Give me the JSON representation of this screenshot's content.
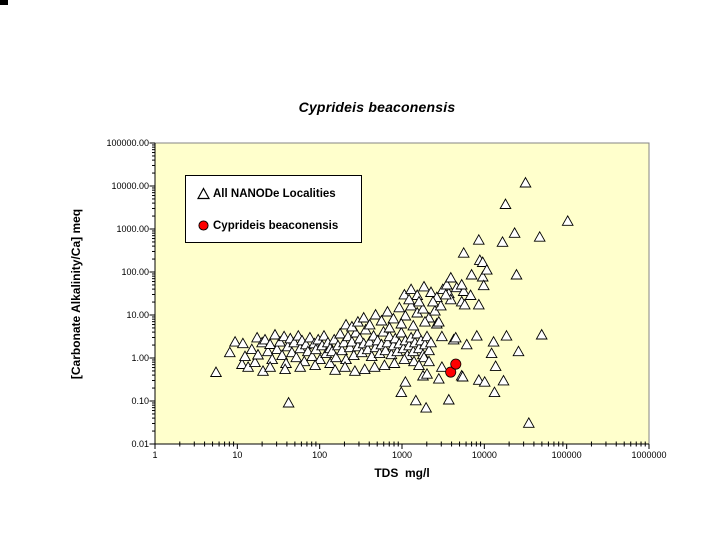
{
  "window": {
    "background": "#FFFFFF",
    "has_corner_mark": true
  },
  "chart_data": {
    "type": "scatter",
    "title": "Cyprideis beaconensis",
    "xlabel": "TDS  mg/l",
    "ylabel": "[Carbonate Alkalinity/Ca] meq",
    "x_scale": "log",
    "y_scale": "log",
    "xlim": [
      1,
      1000000
    ],
    "ylim": [
      0.01,
      100000
    ],
    "x_tick_labels": [
      "1",
      "10",
      "100",
      "1000",
      "10000",
      "100000",
      "1000000"
    ],
    "y_tick_labels": [
      "100000.00",
      "10000.00",
      "1000.00",
      "100.00",
      "10.00",
      "1.00",
      "0.10",
      "0.01"
    ],
    "grid": false,
    "legend_position": "upper-left-inside",
    "plot_background": "#FFFFCC",
    "frame_color": "#848484",
    "axis_color": "#000000",
    "series": [
      {
        "name": "All NANODe Localities",
        "marker": "open-triangle",
        "marker_fill": "#FFFFFF",
        "marker_stroke": "#000000",
        "points": [
          [
            5.5,
            0.47
          ],
          [
            8.1,
            1.36
          ],
          [
            9.4,
            2.4
          ],
          [
            11.4,
            0.72
          ],
          [
            11.7,
            2.2
          ],
          [
            12.4,
            1.1
          ],
          [
            13.5,
            0.62
          ],
          [
            16.4,
            0.8
          ],
          [
            17.4,
            3
          ],
          [
            20,
            2.3
          ],
          [
            20.5,
            0.5
          ],
          [
            15,
            1.6
          ],
          [
            17.8,
            1.2
          ],
          [
            21.7,
            2.7
          ],
          [
            23.5,
            1.43
          ],
          [
            25,
            2.1
          ],
          [
            26.5,
            0.94
          ],
          [
            28.7,
            3.5
          ],
          [
            30.3,
            1.6
          ],
          [
            33,
            2.4
          ],
          [
            35,
            1.16
          ],
          [
            37,
            3.2
          ],
          [
            39,
            0.76
          ],
          [
            41,
            1.86
          ],
          [
            44,
            2.85
          ],
          [
            46,
            1.36
          ],
          [
            49,
            2.3
          ],
          [
            52,
            1.04
          ],
          [
            55,
            3.3
          ],
          [
            58,
            1.68
          ],
          [
            61,
            2.56
          ],
          [
            65,
            0.84
          ],
          [
            68,
            2.07
          ],
          [
            72,
            1.43
          ],
          [
            76,
            3
          ],
          [
            81,
            1.1
          ],
          [
            86,
            2.18
          ],
          [
            90,
            1.59
          ],
          [
            96,
            2.7
          ],
          [
            101,
            0.94
          ],
          [
            107,
            1.96
          ],
          [
            113,
            3.3
          ],
          [
            120,
            1.29
          ],
          [
            126,
            2.3
          ],
          [
            134,
            1.68
          ],
          [
            25,
            0.62
          ],
          [
            38,
            0.55
          ],
          [
            58,
            0.62
          ],
          [
            88,
            0.68
          ],
          [
            134,
            0.76
          ],
          [
            42,
            0.092
          ],
          [
            141,
            1.43
          ],
          [
            150,
            2.7
          ],
          [
            158,
            1.04
          ],
          [
            167,
            1.96
          ],
          [
            177,
            3.7
          ],
          [
            187,
            1.51
          ],
          [
            198,
            2.3
          ],
          [
            209,
            0.94
          ],
          [
            221,
            3.2
          ],
          [
            233,
            1.77
          ],
          [
            246,
            2.4
          ],
          [
            260,
            1.16
          ],
          [
            275,
            3.9
          ],
          [
            291,
            1.86
          ],
          [
            307,
            2.85
          ],
          [
            325,
            1.36
          ],
          [
            343,
            2.18
          ],
          [
            362,
            4.6
          ],
          [
            383,
            1.59
          ],
          [
            405,
            2.4
          ],
          [
            428,
            1.1
          ],
          [
            452,
            3.3
          ],
          [
            478,
            1.77
          ],
          [
            505,
            2.56
          ],
          [
            534,
            1.29
          ],
          [
            564,
            2.07
          ],
          [
            596,
            4.1
          ],
          [
            630,
            1.51
          ],
          [
            666,
            2.3
          ],
          [
            704,
            3.2
          ],
          [
            744,
            1.22
          ],
          [
            786,
            1.96
          ],
          [
            830,
            2.85
          ],
          [
            878,
            1.43
          ],
          [
            928,
            2.18
          ],
          [
            980,
            3.9
          ],
          [
            1040,
            1.68
          ],
          [
            1100,
            2.56
          ],
          [
            1160,
            1.16
          ],
          [
            1220,
            1.96
          ],
          [
            1290,
            3
          ],
          [
            1370,
            1.43
          ],
          [
            1440,
            2.3
          ],
          [
            1530,
            3.7
          ],
          [
            1610,
            1.68
          ],
          [
            1700,
            2.56
          ],
          [
            1800,
            1.22
          ],
          [
            1900,
            2.07
          ],
          [
            2010,
            3.2
          ],
          [
            2130,
            1.51
          ],
          [
            2250,
            2.3
          ],
          [
            1070,
            0.94
          ],
          [
            1400,
            0.84
          ],
          [
            1850,
            1.04
          ],
          [
            808,
            0.76
          ],
          [
            613,
            0.68
          ],
          [
            465,
            0.62
          ],
          [
            352,
            0.55
          ],
          [
            268,
            0.5
          ],
          [
            203,
            0.62
          ],
          [
            154,
            0.53
          ],
          [
            1610,
            0.68
          ],
          [
            2130,
            0.84
          ],
          [
            209,
            6
          ],
          [
            246,
            5.4
          ],
          [
            291,
            7
          ],
          [
            343,
            8.7
          ],
          [
            405,
            6
          ],
          [
            478,
            10.2
          ],
          [
            564,
            7.4
          ],
          [
            666,
            12
          ],
          [
            786,
            8.3
          ],
          [
            928,
            15
          ],
          [
            1100,
            9.7
          ],
          [
            1290,
            16.6
          ],
          [
            1530,
            11.4
          ],
          [
            1800,
            14
          ],
          [
            2130,
            8.7
          ],
          [
            2510,
            12.6
          ],
          [
            2960,
            16.6
          ],
          [
            704,
            5.1
          ],
          [
            980,
            6.3
          ],
          [
            1370,
            5.7
          ],
          [
            1900,
            7
          ],
          [
            2650,
            6.3
          ],
          [
            1070,
            30
          ],
          [
            1290,
            39.8
          ],
          [
            1530,
            29
          ],
          [
            1850,
            46
          ],
          [
            2250,
            34
          ],
          [
            2650,
            26
          ],
          [
            3130,
            39.8
          ],
          [
            3700,
            32
          ],
          [
            4620,
            44
          ],
          [
            5610,
            36
          ],
          [
            6820,
            29
          ],
          [
            3500,
            51
          ],
          [
            1220,
            23
          ],
          [
            1610,
            20.6
          ],
          [
            2380,
            20.6
          ],
          [
            3910,
            23
          ],
          [
            2800,
            7
          ],
          [
            3050,
            3.2
          ],
          [
            3400,
            30
          ],
          [
            3910,
            74
          ],
          [
            4250,
            2.7
          ],
          [
            4490,
            3
          ],
          [
            5310,
            20.6
          ],
          [
            5310,
            51
          ],
          [
            5610,
            280
          ],
          [
            5770,
            17.5
          ],
          [
            6100,
            2.07
          ],
          [
            7010,
            87
          ],
          [
            8100,
            3.3
          ],
          [
            8560,
            560
          ],
          [
            8560,
            17.5
          ],
          [
            8800,
            190
          ],
          [
            9560,
            170
          ],
          [
            9560,
            78
          ],
          [
            9830,
            49
          ],
          [
            10700,
            113
          ],
          [
            12250,
            1.29
          ],
          [
            12950,
            2.4
          ],
          [
            13700,
            0.65
          ],
          [
            13300,
            0.16
          ],
          [
            16600,
            500
          ],
          [
            17100,
            0.3
          ],
          [
            18100,
            3800
          ],
          [
            18600,
            3.3
          ],
          [
            23300,
            810
          ],
          [
            24600,
            87
          ],
          [
            26000,
            1.43
          ],
          [
            31600,
            12000
          ],
          [
            34700,
            0.031
          ],
          [
            47000,
            660
          ],
          [
            49700,
            3.5
          ],
          [
            103000,
            1540
          ],
          [
            980,
            0.16
          ],
          [
            1100,
            0.28
          ],
          [
            1470,
            0.103
          ],
          [
            1800,
            0.39
          ],
          [
            1960,
            0.07
          ],
          [
            2010,
            0.43
          ],
          [
            2800,
            0.33
          ],
          [
            3050,
            0.62
          ],
          [
            3700,
            0.108
          ],
          [
            5310,
            0.39
          ],
          [
            5460,
            0.37
          ],
          [
            8560,
            0.31
          ],
          [
            10100,
            0.28
          ]
        ]
      },
      {
        "name": "Cyprideis beaconensis",
        "marker": "filled-circle",
        "marker_fill": "#FF0000",
        "marker_stroke": "#000000",
        "points": [
          [
            3900,
            0.47
          ],
          [
            4500,
            0.72
          ]
        ]
      }
    ]
  }
}
